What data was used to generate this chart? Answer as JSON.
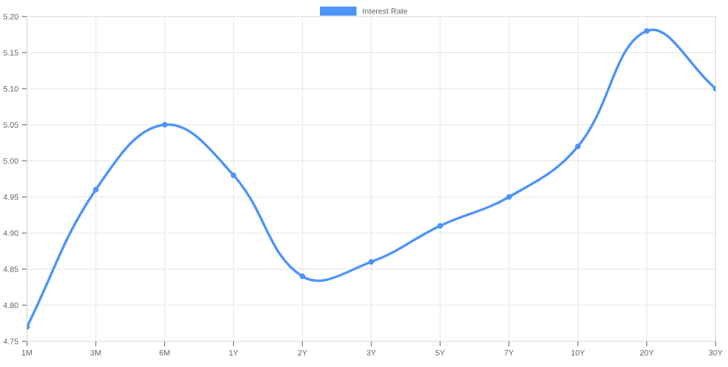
{
  "chart_data": {
    "type": "line",
    "categories": [
      "1M",
      "3M",
      "6M",
      "1Y",
      "2Y",
      "3Y",
      "5Y",
      "7Y",
      "10Y",
      "20Y",
      "30Y"
    ],
    "series": [
      {
        "name": "Interest Rate",
        "color": "#4d94fa",
        "values": [
          4.77,
          4.96,
          5.05,
          4.98,
          4.84,
          4.86,
          4.91,
          4.95,
          5.02,
          5.18,
          5.1
        ]
      }
    ],
    "ylim": [
      4.75,
      5.2
    ],
    "yticks": [
      {
        "value": 4.75,
        "label": "4.75"
      },
      {
        "value": 4.8,
        "label": "4.80"
      },
      {
        "value": 4.85,
        "label": "4.85"
      },
      {
        "value": 4.9,
        "label": "4.90"
      },
      {
        "value": 4.95,
        "label": "4.95"
      },
      {
        "value": 5.0,
        "label": "5.00"
      },
      {
        "value": 5.05,
        "label": "5.05"
      },
      {
        "value": 5.1,
        "label": "5.10"
      },
      {
        "value": 5.15,
        "label": "5.15"
      },
      {
        "value": 5.2,
        "label": "5.20"
      }
    ],
    "grid": true,
    "legend": "top",
    "marker": "circle",
    "line_style": "solid"
  }
}
